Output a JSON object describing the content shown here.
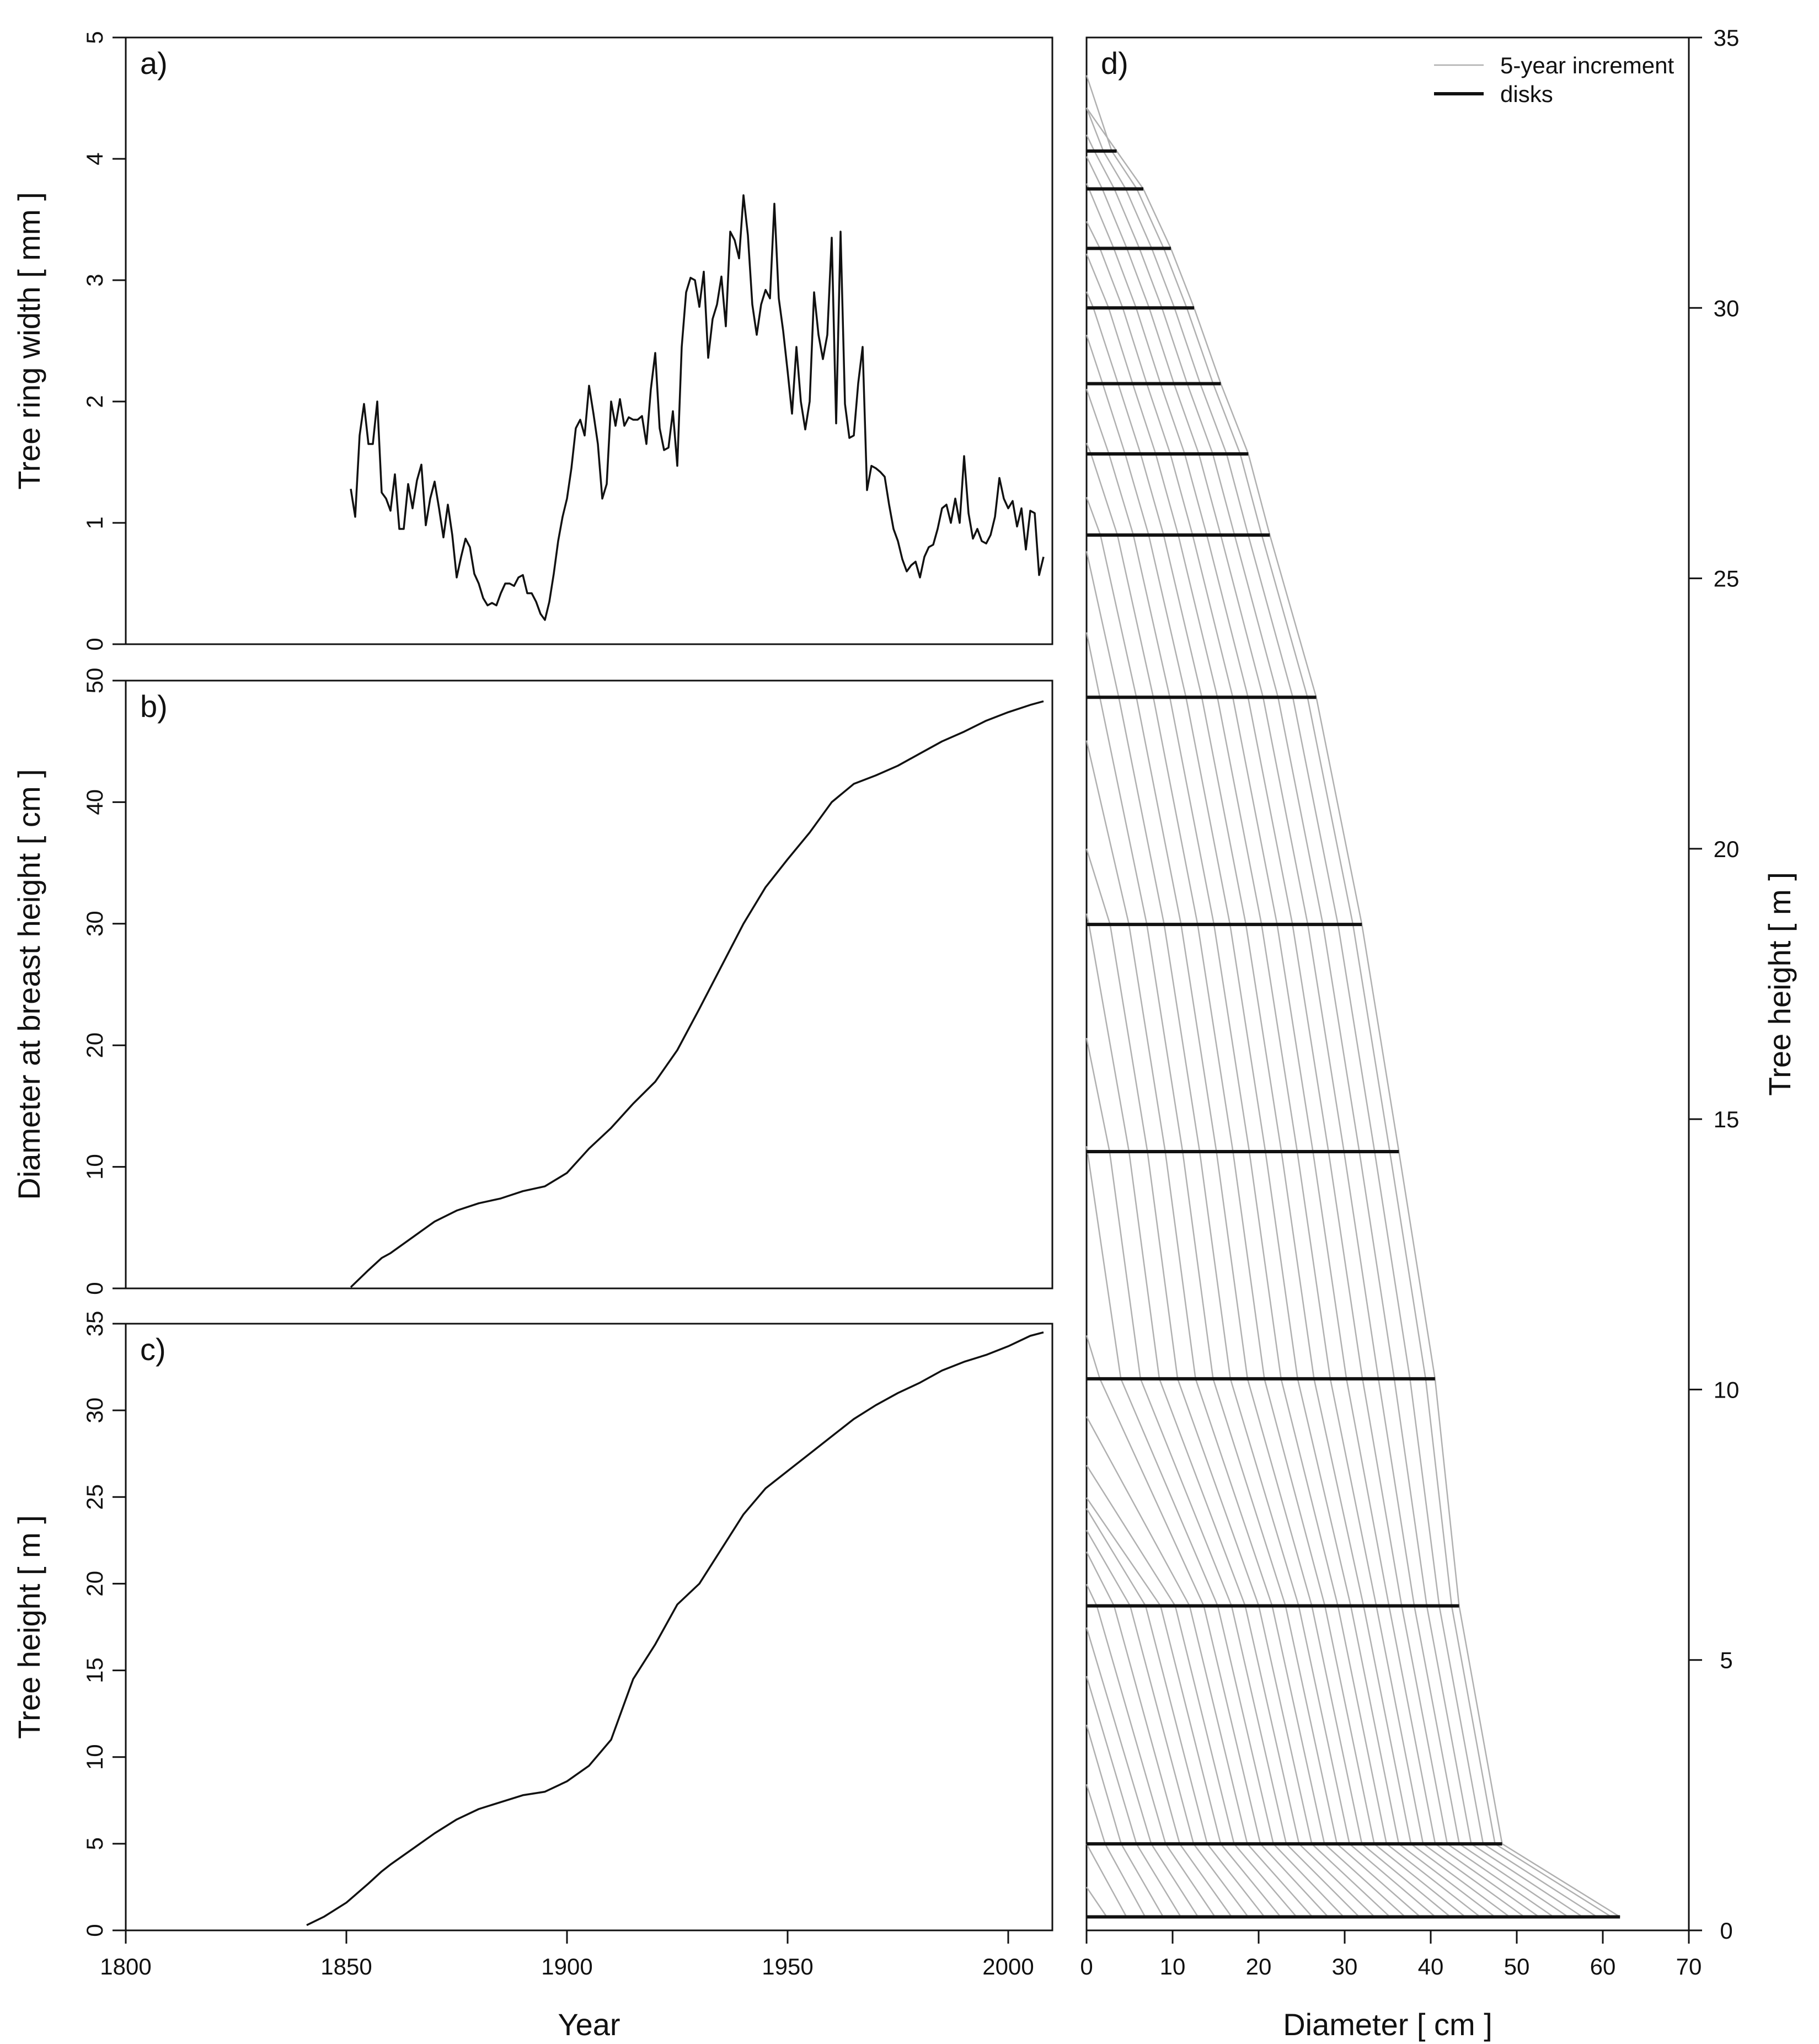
{
  "chart_data": [
    {
      "panel": "a)",
      "type": "line",
      "xlabel": "",
      "ylabel": "Tree ring width [ mm ]",
      "xlim": [
        1800,
        2010
      ],
      "ylim": [
        0,
        5
      ],
      "yticks": [
        0,
        1,
        2,
        3,
        4,
        5
      ],
      "line_color": "#111111",
      "x_start": 1851,
      "values": [
        1.28,
        1.05,
        1.72,
        1.98,
        1.65,
        1.65,
        2.0,
        1.25,
        1.2,
        1.1,
        1.4,
        0.95,
        0.95,
        1.32,
        1.12,
        1.35,
        1.48,
        0.98,
        1.2,
        1.34,
        1.12,
        0.88,
        1.15,
        0.9,
        0.55,
        0.72,
        0.87,
        0.8,
        0.58,
        0.5,
        0.38,
        0.32,
        0.34,
        0.32,
        0.42,
        0.5,
        0.5,
        0.48,
        0.55,
        0.57,
        0.42,
        0.42,
        0.35,
        0.25,
        0.2,
        0.35,
        0.58,
        0.85,
        1.05,
        1.2,
        1.45,
        1.78,
        1.85,
        1.72,
        2.13,
        1.9,
        1.65,
        1.2,
        1.32,
        2.0,
        1.8,
        2.02,
        1.8,
        1.87,
        1.85,
        1.85,
        1.88,
        1.65,
        2.1,
        2.4,
        1.78,
        1.6,
        1.62,
        1.92,
        1.47,
        2.45,
        2.9,
        3.02,
        3.0,
        2.78,
        3.07,
        2.36,
        2.68,
        2.8,
        3.03,
        2.62,
        3.4,
        3.33,
        3.18,
        3.7,
        3.37,
        2.8,
        2.55,
        2.8,
        2.92,
        2.85,
        3.63,
        2.85,
        2.58,
        2.25,
        1.9,
        2.45,
        2.0,
        1.77,
        2.0,
        2.9,
        2.55,
        2.35,
        2.55,
        3.35,
        1.82,
        3.4,
        1.98,
        1.7,
        1.72,
        2.15,
        2.45,
        1.27,
        1.47,
        1.45,
        1.42,
        1.38,
        1.15,
        0.95,
        0.85,
        0.7,
        0.6,
        0.65,
        0.68,
        0.55,
        0.72,
        0.8,
        0.82,
        0.95,
        1.12,
        1.15,
        1.0,
        1.2,
        1.0,
        1.55,
        1.08,
        0.87,
        0.95,
        0.85,
        0.83,
        0.9,
        1.05,
        1.37,
        1.2,
        1.12,
        1.18,
        0.97,
        1.12,
        0.78,
        1.1,
        1.08,
        0.57,
        0.72
      ]
    },
    {
      "panel": "b)",
      "type": "line",
      "xlabel": "",
      "ylabel": "Diameter at breast height [ cm ]",
      "xlim": [
        1800,
        2010
      ],
      "ylim": [
        0,
        50
      ],
      "yticks": [
        0,
        10,
        20,
        30,
        40,
        50
      ],
      "line_color": "#111111",
      "x": [
        1851,
        1855,
        1858,
        1860,
        1865,
        1870,
        1875,
        1880,
        1885,
        1890,
        1895,
        1900,
        1905,
        1910,
        1915,
        1920,
        1925,
        1930,
        1935,
        1940,
        1945,
        1950,
        1955,
        1960,
        1965,
        1970,
        1975,
        1980,
        1985,
        1990,
        1995,
        2000,
        2005,
        2008
      ],
      "y": [
        0.1,
        1.5,
        2.5,
        2.9,
        4.2,
        5.5,
        6.4,
        7.0,
        7.4,
        8.0,
        8.4,
        9.5,
        11.5,
        13.2,
        15.2,
        17.0,
        19.6,
        23.0,
        26.5,
        30.0,
        33.0,
        35.3,
        37.5,
        40.0,
        41.5,
        42.2,
        43.0,
        44.0,
        45.0,
        45.8,
        46.7,
        47.4,
        48.0,
        48.3
      ]
    },
    {
      "panel": "c)",
      "type": "line",
      "xlabel": "Year",
      "ylabel": "Tree height [ m ]",
      "xlim": [
        1800,
        2010
      ],
      "ylim": [
        0,
        35
      ],
      "xticks": [
        1800,
        1850,
        1900,
        1950,
        2000
      ],
      "yticks": [
        0,
        5,
        10,
        15,
        20,
        25,
        30,
        35
      ],
      "line_color": "#111111",
      "x": [
        1841,
        1845,
        1850,
        1855,
        1858,
        1860,
        1865,
        1870,
        1875,
        1880,
        1885,
        1890,
        1895,
        1900,
        1905,
        1910,
        1915,
        1920,
        1925,
        1930,
        1935,
        1940,
        1945,
        1950,
        1955,
        1960,
        1965,
        1970,
        1975,
        1980,
        1985,
        1990,
        1995,
        2000,
        2005,
        2008
      ],
      "y": [
        0.3,
        0.8,
        1.6,
        2.7,
        3.4,
        3.8,
        4.7,
        5.6,
        6.4,
        7.0,
        7.4,
        7.8,
        8.0,
        8.6,
        9.5,
        11.0,
        14.5,
        16.5,
        18.8,
        20.0,
        22.0,
        24.0,
        25.5,
        26.5,
        27.5,
        28.5,
        29.5,
        30.3,
        31.0,
        31.6,
        32.3,
        32.8,
        33.2,
        33.7,
        34.3,
        34.5
      ]
    },
    {
      "panel": "d)",
      "type": "line",
      "xlabel": "Diameter [ cm ]",
      "ylabel": "Tree height [ m ]",
      "xlim": [
        0,
        70
      ],
      "ylim": [
        0,
        35
      ],
      "xticks": [
        0,
        10,
        20,
        30,
        40,
        50,
        60,
        70
      ],
      "yticks": [
        0,
        5,
        10,
        15,
        20,
        25,
        30,
        35
      ],
      "legend": {
        "position": "top-right",
        "entries": [
          {
            "label": "5-year increment",
            "color": "#b0b0b0"
          },
          {
            "label": "disks",
            "color": "#111111"
          }
        ]
      },
      "outer_profile": {
        "diameter": [
          62,
          48.3,
          43.3,
          40.5,
          36.3,
          32.0,
          26.7,
          21.3,
          18.8,
          15.6,
          12.5,
          9.8,
          6.6,
          3.5,
          0
        ],
        "height": [
          0.25,
          1.6,
          6.0,
          10.2,
          14.4,
          18.6,
          22.8,
          25.8,
          27.3,
          28.6,
          30.0,
          31.1,
          32.2,
          32.9,
          33.7
        ]
      },
      "disks": [
        {
          "height": 0.25,
          "diameter": 62
        },
        {
          "height": 1.6,
          "diameter": 48.3
        },
        {
          "height": 6.0,
          "diameter": 43.3
        },
        {
          "height": 10.2,
          "diameter": 40.5
        },
        {
          "height": 14.4,
          "diameter": 36.3
        },
        {
          "height": 18.6,
          "diameter": 32.0
        },
        {
          "height": 22.8,
          "diameter": 26.7
        },
        {
          "height": 25.8,
          "diameter": 21.3
        },
        {
          "height": 27.3,
          "diameter": 18.8
        },
        {
          "height": 28.6,
          "diameter": 15.6
        },
        {
          "height": 30.0,
          "diameter": 12.5
        },
        {
          "height": 31.1,
          "diameter": 9.8
        },
        {
          "height": 32.2,
          "diameter": 6.6
        },
        {
          "height": 32.9,
          "diameter": 3.5
        }
      ],
      "increment_years": [
        1845,
        1850,
        1855,
        1860,
        1865,
        1870,
        1875,
        1880,
        1885,
        1890,
        1895,
        1900,
        1905,
        1910,
        1915,
        1920,
        1925,
        1930,
        1935,
        1940,
        1945,
        1950,
        1955,
        1960,
        1965,
        1970,
        1975,
        1980,
        1985,
        1990,
        1995,
        2000,
        2005
      ]
    }
  ]
}
